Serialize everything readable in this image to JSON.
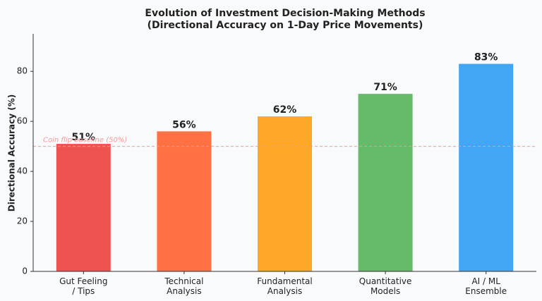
{
  "chart_data": {
    "type": "bar",
    "title": "Evolution of Investment Decision-Making Methods",
    "subtitle": "(Directional Accuracy on 1-Day Price Movements)",
    "y_label": "Directional Accuracy (%)",
    "categories": [
      "Gut Feeling\n/ Tips",
      "Technical\nAnalysis",
      "Fundamental\nAnalysis",
      "Quantitative\nModels",
      "AI / ML\nEnsemble"
    ],
    "values": [
      51,
      56,
      62,
      71,
      83
    ],
    "value_labels": [
      "51%",
      "56%",
      "62%",
      "71%",
      "83%"
    ],
    "colors": [
      "#ef5350",
      "#ff7043",
      "#ffa726",
      "#66bb6a",
      "#42a5f5"
    ],
    "ylim": [
      0,
      95
    ],
    "yticks": [
      0,
      20,
      40,
      60,
      80
    ],
    "grid": false,
    "reference_line": {
      "value": 50,
      "label": "Coin flip baseline (50%)",
      "color": "#ef9a9a"
    }
  }
}
